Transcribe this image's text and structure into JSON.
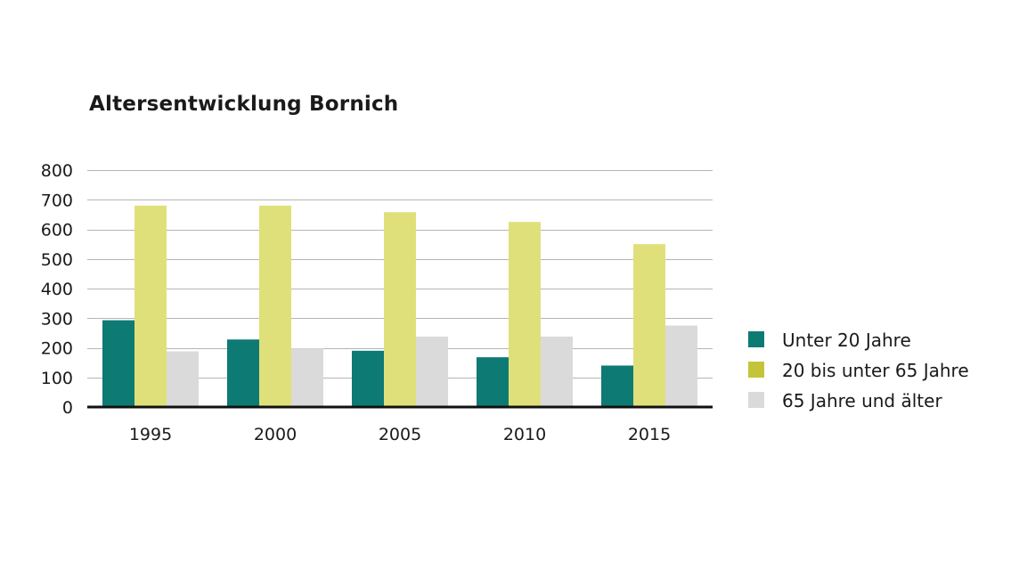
{
  "chart_data": {
    "type": "bar",
    "title": "Altersentwicklung Bornich",
    "xlabel": "",
    "ylabel": "",
    "categories": [
      "1995",
      "2000",
      "2005",
      "2010",
      "2015"
    ],
    "series": [
      {
        "name": "Unter 20 Jahre",
        "color": "#0e7a74",
        "values": [
          293,
          228,
          190,
          168,
          140
        ]
      },
      {
        "name": "20 bis unter 65 Jahre",
        "color": "#e0e07a",
        "values": [
          680,
          680,
          658,
          625,
          550
        ]
      },
      {
        "name": "65 Jahre und älter",
        "color": "#dadada",
        "values": [
          188,
          198,
          238,
          238,
          275
        ]
      }
    ],
    "legend_swatch_colors": [
      "#0e7a74",
      "#c4c43a",
      "#dadada"
    ],
    "ylim": [
      0,
      800
    ],
    "yticks": [
      0,
      100,
      200,
      300,
      400,
      500,
      600,
      700,
      800
    ],
    "grid": true,
    "legend_position": "right"
  }
}
